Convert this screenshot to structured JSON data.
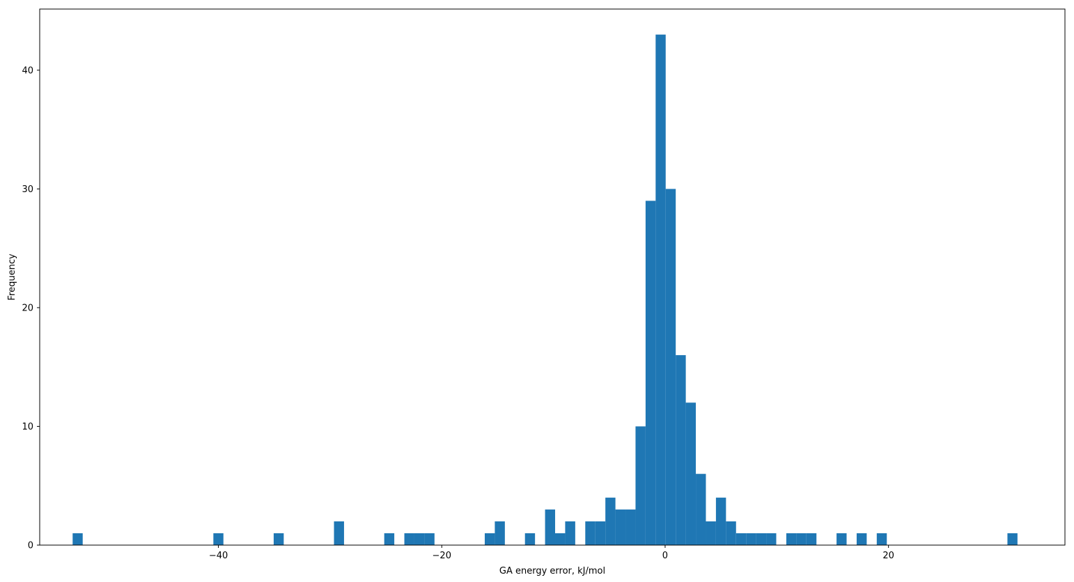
{
  "chart_data": {
    "type": "bar",
    "title": "",
    "xlabel": "GA energy error, kJ/mol",
    "ylabel": "Frequency",
    "xlim": [
      -56.0,
      35.8
    ],
    "ylim": [
      0,
      45.15
    ],
    "grid": false,
    "bar_color": "#1f77b4",
    "bin_width": 0.9,
    "xticks": [
      -40,
      -20,
      0,
      20
    ],
    "xtick_labels": [
      "−40",
      "−20",
      "0",
      "20"
    ],
    "yticks": [
      0,
      10,
      20,
      30,
      40
    ],
    "ytick_labels": [
      "0",
      "10",
      "20",
      "30",
      "40"
    ],
    "bins": [
      {
        "x": -52.6,
        "count": 1
      },
      {
        "x": -40.0,
        "count": 1
      },
      {
        "x": -34.6,
        "count": 1
      },
      {
        "x": -29.2,
        "count": 2
      },
      {
        "x": -24.7,
        "count": 1
      },
      {
        "x": -22.9,
        "count": 1
      },
      {
        "x": -22.0,
        "count": 1
      },
      {
        "x": -21.1,
        "count": 1
      },
      {
        "x": -15.7,
        "count": 1
      },
      {
        "x": -14.8,
        "count": 2
      },
      {
        "x": -12.1,
        "count": 1
      },
      {
        "x": -10.3,
        "count": 3
      },
      {
        "x": -9.4,
        "count": 1
      },
      {
        "x": -8.5,
        "count": 2
      },
      {
        "x": -6.7,
        "count": 2
      },
      {
        "x": -5.8,
        "count": 2
      },
      {
        "x": -4.9,
        "count": 4
      },
      {
        "x": -4.0,
        "count": 3
      },
      {
        "x": -3.1,
        "count": 3
      },
      {
        "x": -2.2,
        "count": 10
      },
      {
        "x": -1.3,
        "count": 29
      },
      {
        "x": -0.4,
        "count": 43
      },
      {
        "x": 0.5,
        "count": 30
      },
      {
        "x": 1.4,
        "count": 16
      },
      {
        "x": 2.3,
        "count": 12
      },
      {
        "x": 3.2,
        "count": 6
      },
      {
        "x": 4.1,
        "count": 2
      },
      {
        "x": 5.0,
        "count": 4
      },
      {
        "x": 5.9,
        "count": 2
      },
      {
        "x": 6.8,
        "count": 1
      },
      {
        "x": 7.7,
        "count": 1
      },
      {
        "x": 8.6,
        "count": 1
      },
      {
        "x": 9.5,
        "count": 1
      },
      {
        "x": 11.3,
        "count": 1
      },
      {
        "x": 12.2,
        "count": 1
      },
      {
        "x": 13.1,
        "count": 1
      },
      {
        "x": 15.8,
        "count": 1
      },
      {
        "x": 17.6,
        "count": 1
      },
      {
        "x": 19.4,
        "count": 1
      },
      {
        "x": 31.1,
        "count": 1
      }
    ]
  }
}
